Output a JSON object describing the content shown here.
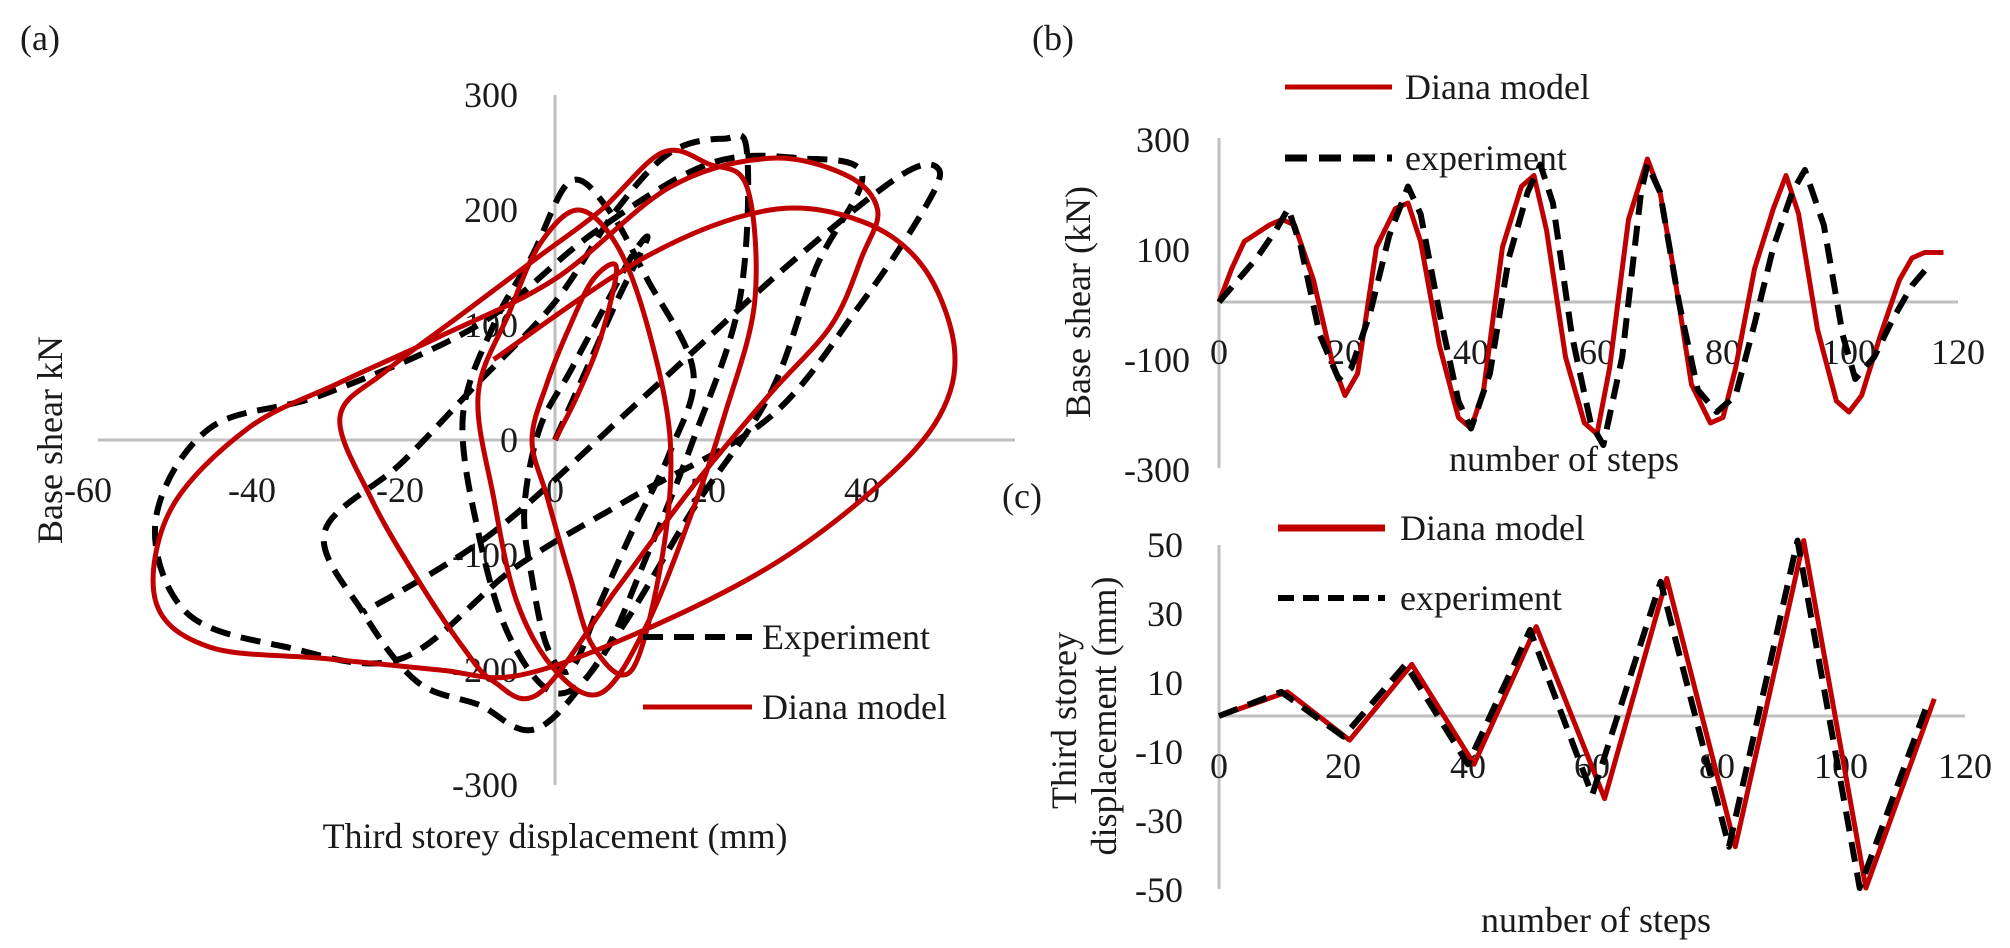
{
  "colors": {
    "model": "#c00000",
    "experiment": "#000000",
    "axis": "#bfbfbf",
    "text": "#1a1a1a"
  },
  "chart_data": [
    {
      "panel_label": "(a)",
      "type": "line",
      "xlabel": "Third storey displacement (mm)",
      "ylabel": "Base shear kN",
      "xlim": [
        -60,
        60
      ],
      "ylim": [
        -300,
        300
      ],
      "x_ticks": [
        "-60",
        "-40",
        "-20",
        "0",
        "20",
        "40"
      ],
      "y_ticks": [
        "300",
        "200",
        "100",
        "0",
        "-100",
        "-200",
        "-300"
      ],
      "legend_position": "bottom-right",
      "series": [
        {
          "name": "Experiment",
          "style": "dashed",
          "x": [
            0,
            4,
            8,
            12,
            10,
            6,
            2,
            -2,
            -4,
            -3,
            -1,
            2,
            6,
            10,
            15,
            18,
            12,
            7,
            2,
            -3,
            -8,
            -12,
            -10,
            -6,
            0,
            6,
            12,
            18,
            24,
            25,
            22,
            15,
            8,
            0,
            -10,
            -20,
            -30,
            -25,
            -18,
            -10,
            -2,
            8,
            18,
            28,
            34,
            40,
            32,
            20,
            5,
            -10,
            -30,
            -45,
            -52,
            -48,
            -35,
            -20,
            -5,
            10,
            28,
            40,
            48,
            50,
            45,
            30,
            12,
            -8,
            -25
          ],
          "y": [
            0,
            60,
            120,
            175,
            160,
            110,
            60,
            10,
            -60,
            -120,
            -180,
            -200,
            -140,
            -80,
            -10,
            60,
            140,
            200,
            225,
            160,
            100,
            20,
            -80,
            -170,
            -220,
            -190,
            -100,
            0,
            120,
            250,
            262,
            250,
            200,
            120,
            50,
            -20,
            -80,
            -150,
            -210,
            -230,
            -250,
            -170,
            -60,
            40,
            150,
            230,
            245,
            240,
            180,
            100,
            40,
            10,
            -70,
            -150,
            -180,
            -190,
            -110,
            -50,
            20,
            120,
            200,
            235,
            230,
            150,
            40,
            -80,
            -150
          ]
        },
        {
          "name": "Diana model",
          "style": "solid",
          "x": [
            0,
            3,
            6,
            8,
            5,
            2,
            -1,
            -3,
            -1,
            2,
            5,
            10,
            14,
            15,
            12,
            8,
            3,
            -2,
            -6,
            -10,
            -8,
            -5,
            0,
            6,
            12,
            18,
            22,
            26,
            25,
            20,
            14,
            6,
            -2,
            -12,
            -22,
            -28,
            -24,
            -18,
            -12,
            -8,
            -2,
            8,
            18,
            28,
            36,
            40,
            42,
            38,
            28,
            15,
            0,
            -15,
            -28,
            -40,
            -50,
            -52,
            -45,
            -30,
            -15,
            -5,
            10,
            28,
            42,
            50,
            52,
            48,
            40,
            28,
            12,
            -8
          ],
          "y": [
            0,
            40,
            90,
            150,
            140,
            100,
            50,
            0,
            -50,
            -120,
            -180,
            -200,
            -100,
            0,
            100,
            170,
            200,
            170,
            110,
            40,
            -50,
            -140,
            -200,
            -220,
            -160,
            -60,
            20,
            120,
            220,
            240,
            250,
            200,
            160,
            110,
            60,
            20,
            -50,
            -120,
            -180,
            -210,
            -220,
            -130,
            -40,
            40,
            100,
            160,
            200,
            230,
            245,
            220,
            140,
            90,
            50,
            10,
            -60,
            -140,
            -180,
            -190,
            -200,
            -205,
            -170,
            -110,
            -40,
            20,
            80,
            150,
            190,
            200,
            160,
            70
          ]
        }
      ]
    },
    {
      "panel_label": "(b)",
      "type": "line",
      "xlabel": "number of steps",
      "ylabel": "Base shear (kN)",
      "xlim": [
        0,
        120
      ],
      "ylim": [
        -300,
        300
      ],
      "x_ticks": [
        "0",
        "20",
        "40",
        "60",
        "80",
        "100",
        "120"
      ],
      "y_ticks": [
        "300",
        "100",
        "-100",
        "-300"
      ],
      "legend_position": "top",
      "series": [
        {
          "name": "Diana model",
          "style": "solid",
          "x": [
            0,
            2,
            4,
            6,
            8,
            10,
            12,
            15,
            18,
            20,
            22,
            25,
            28,
            30,
            32,
            35,
            38,
            40,
            42,
            45,
            48,
            50,
            52,
            55,
            58,
            60,
            62,
            65,
            68,
            70,
            72,
            75,
            78,
            80,
            82,
            85,
            88,
            90,
            92,
            95,
            98,
            100,
            102,
            105,
            108,
            110,
            112,
            115
          ],
          "y": [
            0,
            60,
            110,
            125,
            140,
            150,
            140,
            40,
            -110,
            -170,
            -130,
            100,
            170,
            180,
            110,
            -80,
            -210,
            -230,
            -160,
            100,
            210,
            230,
            130,
            -100,
            -220,
            -240,
            -120,
            150,
            260,
            200,
            70,
            -150,
            -220,
            -210,
            -120,
            60,
            170,
            230,
            160,
            -50,
            -180,
            -200,
            -170,
            -60,
            40,
            80,
            90,
            90
          ]
        },
        {
          "name": "experiment",
          "style": "dashed",
          "x": [
            0,
            3,
            6,
            9,
            11,
            13,
            16,
            19,
            21,
            24,
            27,
            30,
            32,
            35,
            38,
            40,
            43,
            46,
            49,
            51,
            53,
            56,
            59,
            61,
            64,
            67,
            68,
            70,
            73,
            76,
            79,
            82,
            85,
            88,
            91,
            93,
            96,
            99,
            101,
            104,
            107,
            110,
            113
          ],
          "y": [
            0,
            40,
            80,
            130,
            170,
            100,
            -60,
            -140,
            -120,
            -20,
            120,
            210,
            160,
            -20,
            -180,
            -230,
            -130,
            80,
            200,
            250,
            180,
            -60,
            -220,
            -260,
            -100,
            200,
            250,
            200,
            0,
            -160,
            -200,
            -170,
            -40,
            100,
            200,
            240,
            140,
            -60,
            -140,
            -100,
            -30,
            30,
            70
          ]
        }
      ]
    },
    {
      "panel_label": "(c)",
      "type": "line",
      "xlabel": "number of steps",
      "ylabel": "Third storey displacement (mm)",
      "xlim": [
        0,
        120
      ],
      "ylim": [
        -50,
        50
      ],
      "x_ticks": [
        "0",
        "20",
        "40",
        "60",
        "80",
        "100",
        "120"
      ],
      "y_ticks": [
        "50",
        "30",
        "10",
        "-10",
        "-30",
        "-50"
      ],
      "legend_position": "top",
      "series": [
        {
          "name": "Diana model",
          "style": "solid",
          "x": [
            0,
            11,
            21,
            31,
            41,
            51,
            62,
            72,
            83,
            94,
            104,
            115
          ],
          "y": [
            0,
            7,
            -7,
            15,
            -14,
            26,
            -24,
            40,
            -38,
            51,
            -50,
            5
          ]
        },
        {
          "name": "experiment",
          "style": "dashed",
          "x": [
            0,
            10,
            20,
            30,
            40,
            50,
            60,
            71,
            82,
            93,
            103,
            114
          ],
          "y": [
            0,
            7,
            -6,
            15,
            -14,
            25,
            -23,
            39,
            -38,
            51,
            -50,
            4
          ]
        }
      ]
    }
  ]
}
